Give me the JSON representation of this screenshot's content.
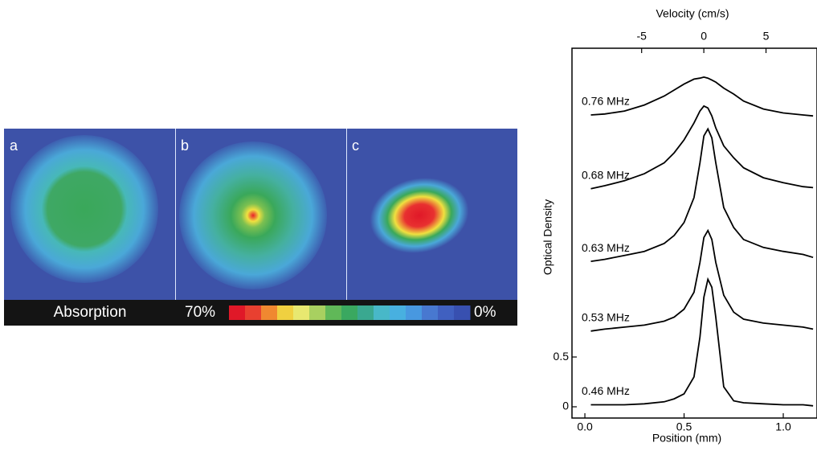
{
  "panels": {
    "labels": [
      "a",
      "b",
      "c"
    ],
    "colorbar": {
      "title": "Absorption",
      "max": "70%",
      "min": "0%"
    }
  },
  "chart_data": {
    "type": "line",
    "xlabel": "Position (mm)",
    "ylabel": "Optical Density",
    "x2label": "Velocity (cm/s)",
    "x": [
      0.03,
      0.1,
      0.2,
      0.3,
      0.4,
      0.45,
      0.5,
      0.55,
      0.58,
      0.6,
      0.62,
      0.64,
      0.66,
      0.7,
      0.75,
      0.8,
      0.9,
      1.0,
      1.1,
      1.15
    ],
    "series": [
      {
        "name": "0.76 MHz",
        "color": "#000000",
        "values": [
          2.93,
          2.94,
          2.97,
          3.03,
          3.12,
          3.18,
          3.24,
          3.29,
          3.3,
          3.31,
          3.3,
          3.28,
          3.26,
          3.2,
          3.14,
          3.07,
          2.99,
          2.95,
          2.93,
          2.92
        ]
      },
      {
        "name": "0.68 MHz",
        "color": "#000000",
        "values": [
          2.19,
          2.22,
          2.27,
          2.34,
          2.45,
          2.55,
          2.68,
          2.85,
          2.97,
          3.02,
          3.0,
          2.92,
          2.8,
          2.62,
          2.5,
          2.4,
          2.3,
          2.25,
          2.21,
          2.2
        ]
      },
      {
        "name": "0.63 MHz",
        "color": "#000000",
        "values": [
          1.46,
          1.48,
          1.52,
          1.56,
          1.64,
          1.72,
          1.85,
          2.1,
          2.45,
          2.72,
          2.79,
          2.7,
          2.45,
          2.0,
          1.8,
          1.68,
          1.6,
          1.56,
          1.53,
          1.5
        ]
      },
      {
        "name": "0.53 MHz",
        "color": "#000000",
        "values": [
          0.76,
          0.78,
          0.8,
          0.82,
          0.86,
          0.9,
          0.98,
          1.15,
          1.45,
          1.7,
          1.77,
          1.68,
          1.45,
          1.12,
          0.95,
          0.88,
          0.84,
          0.82,
          0.8,
          0.78
        ]
      },
      {
        "name": "0.46 MHz",
        "color": "#000000",
        "values": [
          0.02,
          0.02,
          0.02,
          0.03,
          0.05,
          0.08,
          0.13,
          0.3,
          0.7,
          1.1,
          1.28,
          1.2,
          0.9,
          0.2,
          0.06,
          0.04,
          0.03,
          0.02,
          0.02,
          0.01
        ]
      }
    ],
    "xlim": [
      -0.065,
      1.17
    ],
    "xticks": [
      {
        "value": 0,
        "label": "0.0"
      },
      0.5,
      {
        "value": 1,
        "label": "1.0"
      }
    ],
    "ylim": [
      -0.113,
      3.6
    ],
    "yticks": [
      0,
      0.5
    ],
    "x2lim": [
      -10.6,
      9.1
    ],
    "x2ticks": [
      -5,
      0,
      5
    ]
  }
}
